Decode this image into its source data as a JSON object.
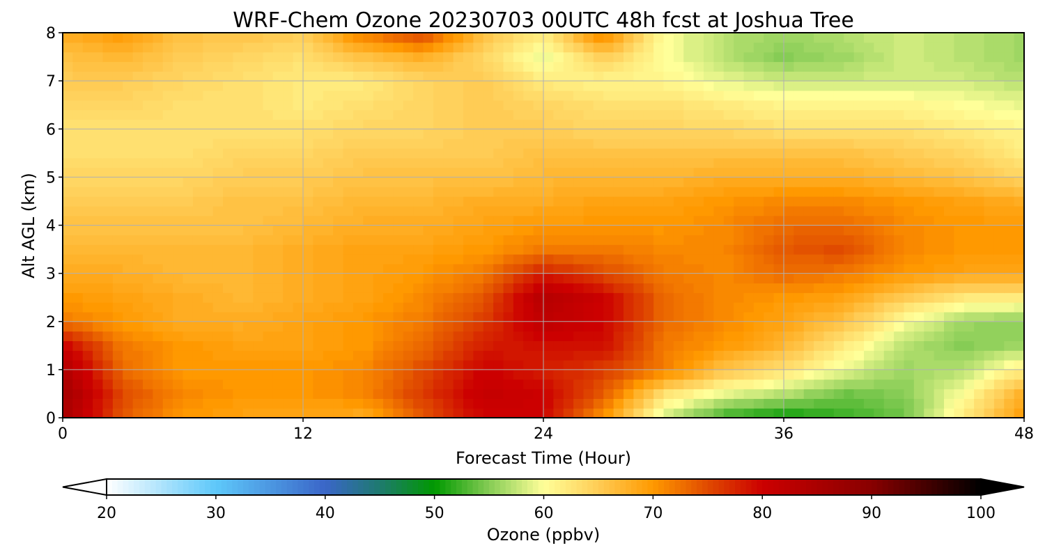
{
  "chart_data": {
    "type": "heatmap",
    "title": "WRF-Chem Ozone  20230703 00UTC 48h fcst at Joshua Tree",
    "xlabel": "Forecast Time (Hour)",
    "ylabel": "Alt AGL (km)",
    "xlim": [
      0,
      48
    ],
    "ylim": [
      0,
      8
    ],
    "xticks": [
      "0",
      "12",
      "24",
      "36",
      "48"
    ],
    "yticks": [
      "0",
      "1",
      "2",
      "3",
      "4",
      "5",
      "6",
      "7",
      "8"
    ],
    "grid": true,
    "x": [
      0,
      3,
      6,
      9,
      12,
      15,
      18,
      21,
      24,
      27,
      30,
      33,
      36,
      39,
      42,
      45,
      48
    ],
    "y": [
      0,
      0.5,
      1,
      1.5,
      2,
      2.5,
      3,
      3.5,
      4,
      4.5,
      5,
      5.5,
      6,
      6.5,
      7,
      7.5,
      8
    ],
    "z": [
      [
        85,
        74,
        70,
        69,
        69,
        68,
        74,
        80,
        80,
        70,
        58,
        52,
        50,
        52,
        54,
        62,
        70
      ],
      [
        86,
        75,
        71,
        70,
        70,
        71,
        76,
        81,
        80,
        74,
        63,
        59,
        57,
        54,
        55,
        60,
        68
      ],
      [
        84,
        73,
        70,
        70,
        70,
        71,
        75,
        80,
        78,
        76,
        72,
        66,
        63,
        59,
        56,
        57,
        62
      ],
      [
        80,
        72,
        70,
        69,
        69,
        70,
        73,
        78,
        79,
        79,
        72,
        70,
        67,
        62,
        57,
        55,
        56
      ],
      [
        72,
        70,
        68,
        68,
        69,
        70,
        72,
        76,
        82,
        80,
        73,
        71,
        69,
        66,
        60,
        56,
        55
      ],
      [
        70,
        69,
        68,
        67,
        68,
        69,
        71,
        74,
        83,
        80,
        73,
        71,
        70,
        69,
        65,
        62,
        62
      ],
      [
        68,
        68,
        67,
        67,
        68,
        69,
        70,
        72,
        78,
        75,
        72,
        71,
        73,
        72,
        70,
        69,
        69
      ],
      [
        67,
        67,
        67,
        67,
        68,
        69,
        69,
        70,
        72,
        72,
        71,
        71,
        74,
        75,
        71,
        70,
        70
      ],
      [
        66,
        66,
        66,
        66,
        67,
        68,
        68,
        69,
        70,
        70,
        70,
        71,
        73,
        73,
        71,
        70,
        70
      ],
      [
        65,
        65,
        65,
        66,
        66,
        67,
        67,
        68,
        68,
        69,
        69,
        70,
        71,
        71,
        70,
        69,
        68
      ],
      [
        64,
        64,
        64,
        65,
        65,
        66,
        66,
        66,
        67,
        67,
        67,
        68,
        68,
        68,
        67,
        66,
        64
      ],
      [
        63,
        63,
        63,
        64,
        64,
        65,
        65,
        65,
        66,
        66,
        66,
        66,
        66,
        66,
        65,
        64,
        62
      ],
      [
        63,
        63,
        63,
        63,
        63,
        64,
        64,
        65,
        65,
        64,
        64,
        64,
        63,
        63,
        63,
        62,
        61
      ],
      [
        64,
        64,
        63,
        63,
        62,
        63,
        64,
        65,
        64,
        63,
        63,
        62,
        61,
        61,
        61,
        60,
        59
      ],
      [
        65,
        65,
        64,
        63,
        62,
        62,
        64,
        65,
        62,
        61,
        61,
        59,
        58,
        58,
        58,
        58,
        57
      ],
      [
        66,
        67,
        65,
        64,
        63,
        66,
        68,
        64,
        59,
        65,
        60,
        57,
        55,
        56,
        58,
        57,
        56
      ],
      [
        68,
        70,
        66,
        66,
        65,
        72,
        76,
        66,
        62,
        72,
        60,
        57,
        56,
        57,
        58,
        57,
        56
      ]
    ],
    "colorbar": {
      "label": "Ozone  (ppbv)",
      "range": [
        20,
        100
      ],
      "ticks": [
        "20",
        "30",
        "40",
        "50",
        "60",
        "70",
        "80",
        "90",
        "100"
      ],
      "extend": "both",
      "anchors": [
        [
          20,
          "#ffffff"
        ],
        [
          30,
          "#5ec8fa"
        ],
        [
          40,
          "#3a66c8"
        ],
        [
          45,
          "#1e7a6e"
        ],
        [
          50,
          "#009900"
        ],
        [
          55,
          "#86cc55"
        ],
        [
          60,
          "#ffff99"
        ],
        [
          65,
          "#ffcc55"
        ],
        [
          70,
          "#ff9900"
        ],
        [
          75,
          "#e04a00"
        ],
        [
          80,
          "#cc0000"
        ],
        [
          90,
          "#880000"
        ],
        [
          100,
          "#000000"
        ]
      ]
    }
  }
}
